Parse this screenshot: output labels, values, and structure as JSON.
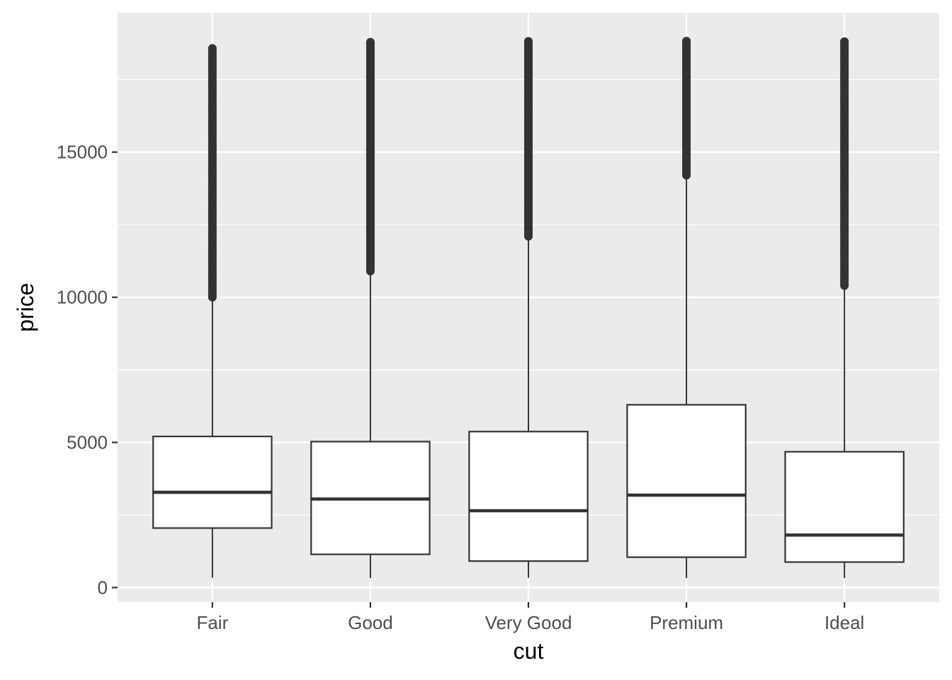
{
  "chart_data": {
    "type": "boxplot",
    "xlabel": "cut",
    "ylabel": "price",
    "ylim": [
      -500,
      19800
    ],
    "y_ticks": [
      0,
      5000,
      10000,
      15000
    ],
    "y_tick_labels": [
      "0",
      "5000",
      "10000",
      "15000"
    ],
    "grid": true,
    "categories": [
      "Fair",
      "Good",
      "Very Good",
      "Premium",
      "Ideal"
    ],
    "boxes": [
      {
        "category": "Fair",
        "whisker_low": 337,
        "q1": 2050,
        "median": 3282,
        "q3": 5206,
        "whisker_high": 9960,
        "outlier_range": [
          10000,
          18574
        ]
      },
      {
        "category": "Good",
        "whisker_low": 327,
        "q1": 1145,
        "median": 3050,
        "q3": 5028,
        "whisker_high": 10850,
        "outlier_range": [
          10900,
          18788
        ]
      },
      {
        "category": "Very Good",
        "whisker_low": 336,
        "q1": 912,
        "median": 2648,
        "q3": 5373,
        "whisker_high": 12050,
        "outlier_range": [
          12100,
          18818
        ]
      },
      {
        "category": "Premium",
        "whisker_low": 326,
        "q1": 1046,
        "median": 3185,
        "q3": 6296,
        "whisker_high": 14150,
        "outlier_range": [
          14200,
          18823
        ]
      },
      {
        "category": "Ideal",
        "whisker_low": 326,
        "q1": 878,
        "median": 1810,
        "q3": 4678,
        "whisker_high": 10350,
        "outlier_range": [
          10400,
          18806
        ]
      }
    ],
    "colors": {
      "panel": "#ebebeb",
      "grid": "#ffffff",
      "box_fill": "#ffffff",
      "box_line": "#333333",
      "outlier": "#333333"
    }
  }
}
